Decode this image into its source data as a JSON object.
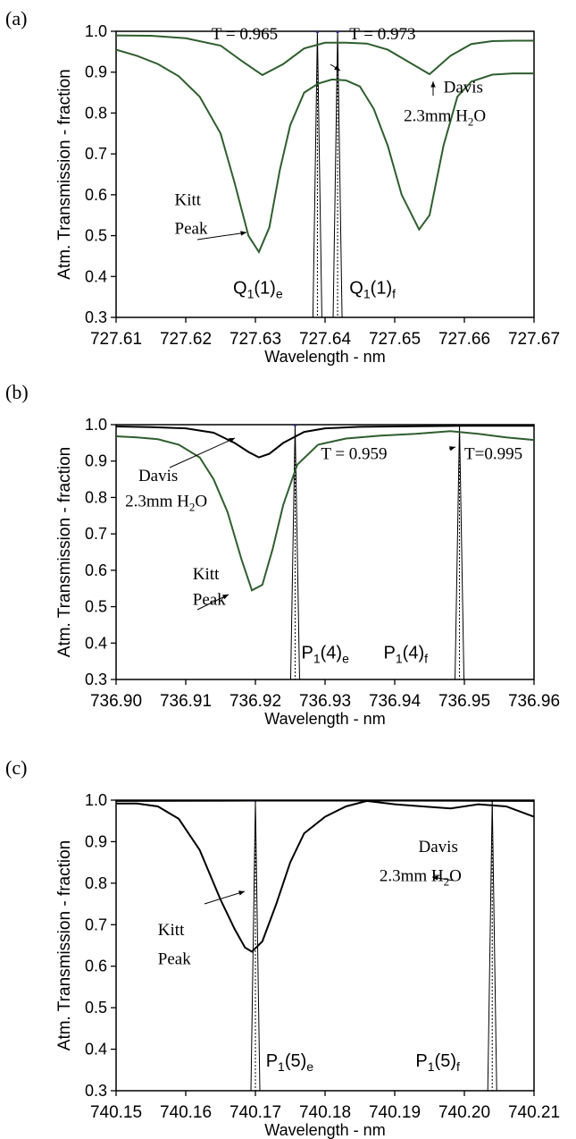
{
  "chart_data": [
    {
      "panel_label": "(a)",
      "type": "line",
      "xlabel": "Wavelength - nm",
      "ylabel": "Atm. Transmission - fraction",
      "xlim": [
        727.61,
        727.67
      ],
      "ylim": [
        0.3,
        1.0
      ],
      "x_ticks": [
        "727.61",
        "727.62",
        "727.63",
        "727.64",
        "727.65",
        "727.66",
        "727.67"
      ],
      "y_ticks": [
        "0.3",
        "0.4",
        "0.5",
        "0.6",
        "0.7",
        "0.8",
        "0.9",
        "1.0"
      ],
      "series": [
        {
          "color": "#2e5e2e",
          "x": [
            727.61,
            727.615,
            727.62,
            727.625,
            727.628,
            727.631,
            727.634,
            727.637,
            727.64,
            727.643,
            727.646,
            727.649,
            727.652,
            727.655,
            727.658,
            727.661,
            727.664,
            727.667,
            727.67
          ],
          "y": [
            0.99,
            0.989,
            0.983,
            0.965,
            0.928,
            0.893,
            0.92,
            0.958,
            0.972,
            0.972,
            0.97,
            0.955,
            0.925,
            0.895,
            0.94,
            0.969,
            0.976,
            0.977,
            0.977
          ]
        },
        {
          "color": "#2e5e2e",
          "x": [
            727.61,
            727.613,
            727.616,
            727.619,
            727.622,
            727.625,
            727.627,
            727.629,
            727.6305,
            727.632,
            727.6335,
            727.635,
            727.637,
            727.639,
            727.641,
            727.643,
            727.645,
            727.647,
            727.649,
            727.651,
            727.6535,
            727.655,
            727.657,
            727.659,
            727.661,
            727.664,
            727.667,
            727.67
          ],
          "y": [
            0.955,
            0.94,
            0.92,
            0.89,
            0.84,
            0.75,
            0.63,
            0.5,
            0.46,
            0.52,
            0.66,
            0.77,
            0.85,
            0.872,
            0.882,
            0.88,
            0.865,
            0.81,
            0.72,
            0.6,
            0.515,
            0.55,
            0.72,
            0.84,
            0.877,
            0.894,
            0.897,
            0.897
          ]
        }
      ],
      "lines": [
        {
          "x": 727.6389,
          "color": "#000000"
        },
        {
          "x": 727.6418,
          "color": "#000000"
        }
      ],
      "annotations": [
        {
          "text": "T = 0.965",
          "x": 727.6237,
          "y": 0.98
        },
        {
          "text": "T = 0.973",
          "x": 727.6435,
          "y": 0.98
        },
        {
          "text": "Davis",
          "x": 727.657,
          "y": 0.85
        },
        {
          "text_main": "2.3mm H",
          "sub": "2",
          "text_after": "O",
          "x": 727.6513,
          "y": 0.78
        },
        {
          "text": "Kitt",
          "x": 727.6184,
          "y": 0.575
        },
        {
          "text": "Peak",
          "x": 727.6184,
          "y": 0.505
        },
        {
          "text_main": "Q",
          "sub": "1",
          "mid": "(1)",
          "sub2": "e",
          "x": 727.6268,
          "y": 0.358
        },
        {
          "text_main": "Q",
          "sub": "1",
          "mid": "(1)",
          "sub2": "f",
          "x": 727.6435,
          "y": 0.358
        }
      ]
    },
    {
      "panel_label": "(b)",
      "type": "line",
      "xlabel": "Wavelength - nm",
      "ylabel": "Atm. Transmission - fraction",
      "xlim": [
        736.9,
        736.96
      ],
      "ylim": [
        0.3,
        1.0
      ],
      "x_ticks": [
        "736.90",
        "736.91",
        "736.92",
        "736.93",
        "736.94",
        "736.95",
        "736.96"
      ],
      "y_ticks": [
        "0.3",
        "0.4",
        "0.5",
        "0.6",
        "0.7",
        "0.8",
        "0.9",
        "1.0"
      ],
      "series": [
        {
          "color": "#000000",
          "x": [
            736.9,
            736.905,
            736.91,
            736.914,
            736.917,
            736.919,
            736.9205,
            736.922,
            736.924,
            736.927,
            736.93,
            736.935,
            736.94,
            736.945,
            736.95,
            736.955,
            736.96
          ],
          "y": [
            0.995,
            0.993,
            0.99,
            0.978,
            0.95,
            0.925,
            0.91,
            0.92,
            0.95,
            0.98,
            0.99,
            0.994,
            0.995,
            0.996,
            0.997,
            0.997,
            0.997
          ]
        },
        {
          "color": "#2e5e2e",
          "x": [
            736.9,
            736.903,
            736.906,
            736.909,
            736.912,
            736.914,
            736.916,
            736.918,
            736.9195,
            736.921,
            736.9225,
            736.924,
            736.926,
            736.929,
            736.933,
            736.938,
            736.943,
            736.948,
            736.952,
            736.956,
            736.96
          ],
          "y": [
            0.968,
            0.965,
            0.96,
            0.945,
            0.91,
            0.85,
            0.76,
            0.63,
            0.545,
            0.56,
            0.66,
            0.78,
            0.89,
            0.945,
            0.962,
            0.97,
            0.975,
            0.982,
            0.975,
            0.965,
            0.958
          ]
        }
      ],
      "lines": [
        {
          "x": 736.9257,
          "color": "#000000"
        },
        {
          "x": 736.9493,
          "color": "#000000"
        }
      ],
      "annotations": [
        {
          "text": "Davis",
          "x": 736.9032,
          "y": 0.845
        },
        {
          "text_main": "2.3mm H",
          "sub": "2",
          "text_after": "O",
          "x": 736.9013,
          "y": 0.775
        },
        {
          "text": "T = 0.959",
          "x": 736.9294,
          "y": 0.905
        },
        {
          "text": "T=0.995",
          "x": 736.95,
          "y": 0.905
        },
        {
          "text": "Kitt",
          "x": 736.911,
          "y": 0.575
        },
        {
          "text": "Peak",
          "x": 736.911,
          "y": 0.505
        },
        {
          "text_main": "P",
          "sub": "1",
          "mid": "(4)",
          "sub2": "e",
          "x": 736.9266,
          "y": 0.358
        },
        {
          "text_main": "P",
          "sub": "1",
          "mid": "(4)",
          "sub2": "f",
          "x": 736.9384,
          "y": 0.358
        }
      ]
    },
    {
      "panel_label": "(c)",
      "type": "line",
      "xlabel": "Wavelength - nm",
      "ylabel": "Atm. Transmission - fraction",
      "xlim": [
        740.15,
        740.21
      ],
      "ylim": [
        0.3,
        1.0
      ],
      "x_ticks": [
        "740.15",
        "740.16",
        "740.17",
        "740.18",
        "740.19",
        "740.20",
        "740.21"
      ],
      "y_ticks": [
        "0.3",
        "0.4",
        "0.5",
        "0.6",
        "0.7",
        "0.8",
        "0.9",
        "1.0"
      ],
      "series": [
        {
          "color": "#000000",
          "x": [
            740.15,
            740.17,
            740.19,
            740.21
          ],
          "y": [
            0.998,
            0.999,
            0.999,
            0.998
          ]
        },
        {
          "color": "#000000",
          "x": [
            740.15,
            740.153,
            740.156,
            740.159,
            740.162,
            740.165,
            740.167,
            740.1685,
            740.1695,
            740.171,
            740.173,
            740.175,
            740.177,
            740.18,
            740.183,
            740.186,
            740.19,
            740.194,
            740.198,
            740.202,
            740.206,
            740.21
          ],
          "y": [
            0.992,
            0.992,
            0.985,
            0.955,
            0.88,
            0.76,
            0.69,
            0.645,
            0.635,
            0.66,
            0.75,
            0.85,
            0.92,
            0.96,
            0.985,
            0.998,
            0.99,
            0.985,
            0.98,
            0.99,
            0.985,
            0.96
          ]
        }
      ],
      "lines": [
        {
          "x": 740.17,
          "color": "#000000"
        },
        {
          "x": 740.204,
          "color": "#000000"
        }
      ],
      "annotations": [
        {
          "text": "Davis",
          "x": 740.1934,
          "y": 0.875
        },
        {
          "text_main": "2.3mm H",
          "sub": "2",
          "text_after": "O",
          "x": 740.1878,
          "y": 0.805
        },
        {
          "text": "Kitt",
          "x": 740.156,
          "y": 0.675
        },
        {
          "text": "Peak",
          "x": 740.156,
          "y": 0.605
        },
        {
          "text_main": "P",
          "sub": "1",
          "mid": "(5)",
          "sub2": "e",
          "x": 740.1715,
          "y": 0.358
        },
        {
          "text_main": "P",
          "sub": "1",
          "mid": "(5)",
          "sub2": "f",
          "x": 740.193,
          "y": 0.358
        }
      ]
    }
  ]
}
